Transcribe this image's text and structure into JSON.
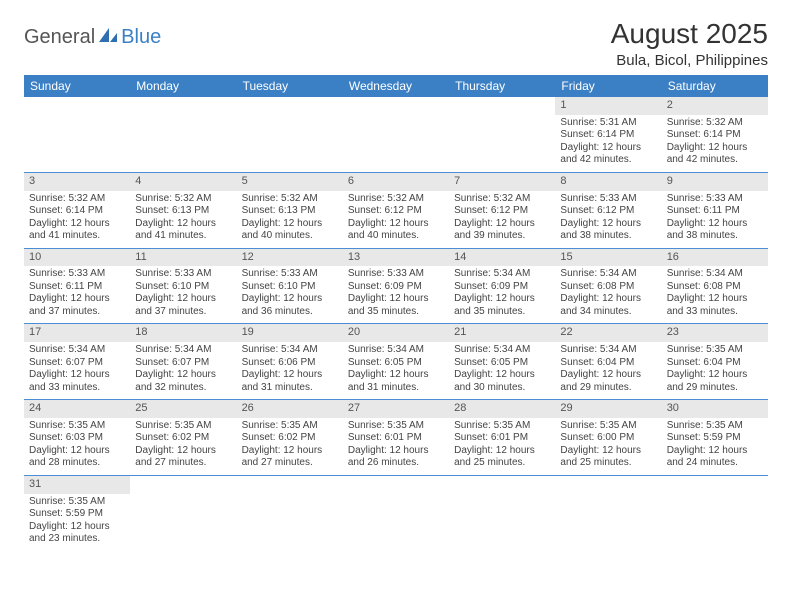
{
  "logo": {
    "text1": "General",
    "text2": "Blue"
  },
  "title": "August 2025",
  "subtitle": "Bula, Bicol, Philippines",
  "header_bg": "#3b7fc4",
  "row_divider": "#4a8fd4",
  "daynum_bg": "#e8e8e8",
  "background": "#ffffff",
  "font_family": "Arial, Helvetica, sans-serif",
  "title_fontsize": 28,
  "subtitle_fontsize": 15,
  "header_fontsize": 12,
  "cell_fontsize": 10,
  "weekdays": [
    "Sunday",
    "Monday",
    "Tuesday",
    "Wednesday",
    "Thursday",
    "Friday",
    "Saturday"
  ],
  "weeks": [
    [
      null,
      null,
      null,
      null,
      null,
      {
        "n": "1",
        "sr": "5:31 AM",
        "ss": "6:14 PM",
        "dl": "12 hours and 42 minutes."
      },
      {
        "n": "2",
        "sr": "5:32 AM",
        "ss": "6:14 PM",
        "dl": "12 hours and 42 minutes."
      }
    ],
    [
      {
        "n": "3",
        "sr": "5:32 AM",
        "ss": "6:14 PM",
        "dl": "12 hours and 41 minutes."
      },
      {
        "n": "4",
        "sr": "5:32 AM",
        "ss": "6:13 PM",
        "dl": "12 hours and 41 minutes."
      },
      {
        "n": "5",
        "sr": "5:32 AM",
        "ss": "6:13 PM",
        "dl": "12 hours and 40 minutes."
      },
      {
        "n": "6",
        "sr": "5:32 AM",
        "ss": "6:12 PM",
        "dl": "12 hours and 40 minutes."
      },
      {
        "n": "7",
        "sr": "5:32 AM",
        "ss": "6:12 PM",
        "dl": "12 hours and 39 minutes."
      },
      {
        "n": "8",
        "sr": "5:33 AM",
        "ss": "6:12 PM",
        "dl": "12 hours and 38 minutes."
      },
      {
        "n": "9",
        "sr": "5:33 AM",
        "ss": "6:11 PM",
        "dl": "12 hours and 38 minutes."
      }
    ],
    [
      {
        "n": "10",
        "sr": "5:33 AM",
        "ss": "6:11 PM",
        "dl": "12 hours and 37 minutes."
      },
      {
        "n": "11",
        "sr": "5:33 AM",
        "ss": "6:10 PM",
        "dl": "12 hours and 37 minutes."
      },
      {
        "n": "12",
        "sr": "5:33 AM",
        "ss": "6:10 PM",
        "dl": "12 hours and 36 minutes."
      },
      {
        "n": "13",
        "sr": "5:33 AM",
        "ss": "6:09 PM",
        "dl": "12 hours and 35 minutes."
      },
      {
        "n": "14",
        "sr": "5:34 AM",
        "ss": "6:09 PM",
        "dl": "12 hours and 35 minutes."
      },
      {
        "n": "15",
        "sr": "5:34 AM",
        "ss": "6:08 PM",
        "dl": "12 hours and 34 minutes."
      },
      {
        "n": "16",
        "sr": "5:34 AM",
        "ss": "6:08 PM",
        "dl": "12 hours and 33 minutes."
      }
    ],
    [
      {
        "n": "17",
        "sr": "5:34 AM",
        "ss": "6:07 PM",
        "dl": "12 hours and 33 minutes."
      },
      {
        "n": "18",
        "sr": "5:34 AM",
        "ss": "6:07 PM",
        "dl": "12 hours and 32 minutes."
      },
      {
        "n": "19",
        "sr": "5:34 AM",
        "ss": "6:06 PM",
        "dl": "12 hours and 31 minutes."
      },
      {
        "n": "20",
        "sr": "5:34 AM",
        "ss": "6:05 PM",
        "dl": "12 hours and 31 minutes."
      },
      {
        "n": "21",
        "sr": "5:34 AM",
        "ss": "6:05 PM",
        "dl": "12 hours and 30 minutes."
      },
      {
        "n": "22",
        "sr": "5:34 AM",
        "ss": "6:04 PM",
        "dl": "12 hours and 29 minutes."
      },
      {
        "n": "23",
        "sr": "5:35 AM",
        "ss": "6:04 PM",
        "dl": "12 hours and 29 minutes."
      }
    ],
    [
      {
        "n": "24",
        "sr": "5:35 AM",
        "ss": "6:03 PM",
        "dl": "12 hours and 28 minutes."
      },
      {
        "n": "25",
        "sr": "5:35 AM",
        "ss": "6:02 PM",
        "dl": "12 hours and 27 minutes."
      },
      {
        "n": "26",
        "sr": "5:35 AM",
        "ss": "6:02 PM",
        "dl": "12 hours and 27 minutes."
      },
      {
        "n": "27",
        "sr": "5:35 AM",
        "ss": "6:01 PM",
        "dl": "12 hours and 26 minutes."
      },
      {
        "n": "28",
        "sr": "5:35 AM",
        "ss": "6:01 PM",
        "dl": "12 hours and 25 minutes."
      },
      {
        "n": "29",
        "sr": "5:35 AM",
        "ss": "6:00 PM",
        "dl": "12 hours and 25 minutes."
      },
      {
        "n": "30",
        "sr": "5:35 AM",
        "ss": "5:59 PM",
        "dl": "12 hours and 24 minutes."
      }
    ],
    [
      {
        "n": "31",
        "sr": "5:35 AM",
        "ss": "5:59 PM",
        "dl": "12 hours and 23 minutes."
      },
      null,
      null,
      null,
      null,
      null,
      null
    ]
  ],
  "labels": {
    "sunrise": "Sunrise:",
    "sunset": "Sunset:",
    "daylight": "Daylight:"
  }
}
